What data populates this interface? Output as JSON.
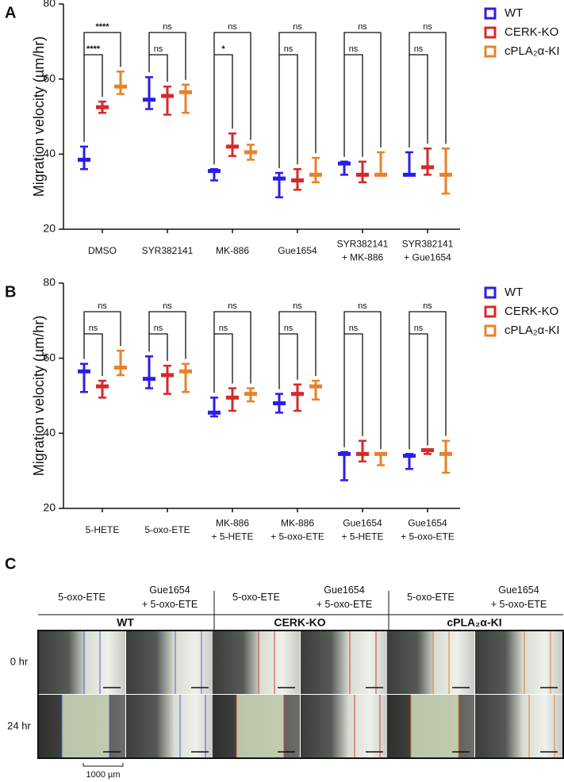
{
  "chart_data": [
    {
      "type": "errorbar",
      "panel_label": "A",
      "y_label": "Migration velocity (µm/hr)",
      "categories": [
        "DMSO",
        "SYR382141",
        "MK-886",
        "Gue1654",
        "SYR382141\n+ MK-886",
        "SYR382141\n+ Gue1654"
      ],
      "series": [
        {
          "name": "WT",
          "color": "#2d1de8",
          "values": [
            38.5,
            54.5,
            35.5,
            33.5,
            37.5,
            34.5
          ],
          "low": [
            36,
            52,
            33,
            28.5,
            34.5,
            34.5
          ],
          "high": [
            42,
            60.5,
            36,
            35,
            38,
            40.5
          ]
        },
        {
          "name": "CERK-KO",
          "color": "#d42a2a",
          "values": [
            52.5,
            55.5,
            42,
            33,
            34.5,
            36.5
          ],
          "low": [
            51,
            50.5,
            39.5,
            30.5,
            32.5,
            34.5
          ],
          "high": [
            54,
            58,
            45.5,
            36,
            38,
            41.5
          ]
        },
        {
          "name": "cPLA₂α-KI",
          "color": "#e8822a",
          "values": [
            58,
            56.5,
            40.5,
            34.5,
            34.5,
            34.5
          ],
          "low": [
            56,
            51,
            38.5,
            32.5,
            34.5,
            29.5
          ],
          "high": [
            62,
            58.5,
            42.5,
            39,
            40.5,
            41.5
          ]
        }
      ],
      "significance": [
        [
          "****",
          "****"
        ],
        [
          "ns",
          "ns"
        ],
        [
          "*",
          "ns"
        ],
        [
          "ns",
          "ns"
        ],
        [
          "ns",
          "ns"
        ],
        [
          "ns",
          "ns"
        ]
      ],
      "ylim": [
        20,
        80
      ],
      "yticks": [
        20,
        40,
        60,
        80
      ],
      "legend": "upper right"
    },
    {
      "type": "errorbar",
      "panel_label": "B",
      "y_label": "Migration velocity (µm/hr)",
      "categories": [
        "5-HETE",
        "5-oxo-ETE",
        "MK-886\n+ 5-HETE",
        "MK-886\n+ 5-oxo-ETE",
        "Gue1654\n+ 5-HETE",
        "Gue1654\n+ 5-oxo-ETE"
      ],
      "series": [
        {
          "name": "WT",
          "color": "#2d1de8",
          "values": [
            56.5,
            54.5,
            45.5,
            48,
            34.5,
            34
          ],
          "low": [
            51,
            52,
            44.5,
            45.5,
            27.5,
            30.5
          ],
          "high": [
            58.5,
            60.5,
            49.5,
            50.5,
            35,
            34.5
          ]
        },
        {
          "name": "CERK-KO",
          "color": "#d42a2a",
          "values": [
            52.5,
            55.5,
            49.5,
            50.5,
            34.5,
            35.5
          ],
          "low": [
            49.5,
            50.5,
            46,
            46,
            32.5,
            34.5
          ],
          "high": [
            54,
            58,
            52,
            53,
            38,
            35.5
          ]
        },
        {
          "name": "cPLA₂α-KI",
          "color": "#e8822a",
          "values": [
            57.5,
            56.5,
            50.5,
            52.5,
            34.5,
            34.5
          ],
          "low": [
            55.5,
            51,
            48.5,
            49,
            31.5,
            29.5
          ],
          "high": [
            62,
            58.5,
            52,
            54,
            34.5,
            38
          ]
        }
      ],
      "significance": [
        [
          "ns",
          "ns"
        ],
        [
          "ns",
          "ns"
        ],
        [
          "ns",
          "ns"
        ],
        [
          "ns",
          "ns"
        ],
        [
          "ns",
          "ns"
        ],
        [
          "ns",
          "ns"
        ]
      ],
      "ylim": [
        20,
        80
      ],
      "yticks": [
        20,
        40,
        60,
        80
      ],
      "legend": "upper right"
    }
  ],
  "panel_c": {
    "label": "C",
    "groups": [
      "WT",
      "CERK-KO",
      "cPLA₂α-KI"
    ],
    "columns": [
      "5-oxo-ETE",
      "Gue1654\n+ 5-oxo-ETE"
    ],
    "rows": [
      "0 hr",
      "24 hr"
    ],
    "scale_bar": "1000 µm"
  }
}
